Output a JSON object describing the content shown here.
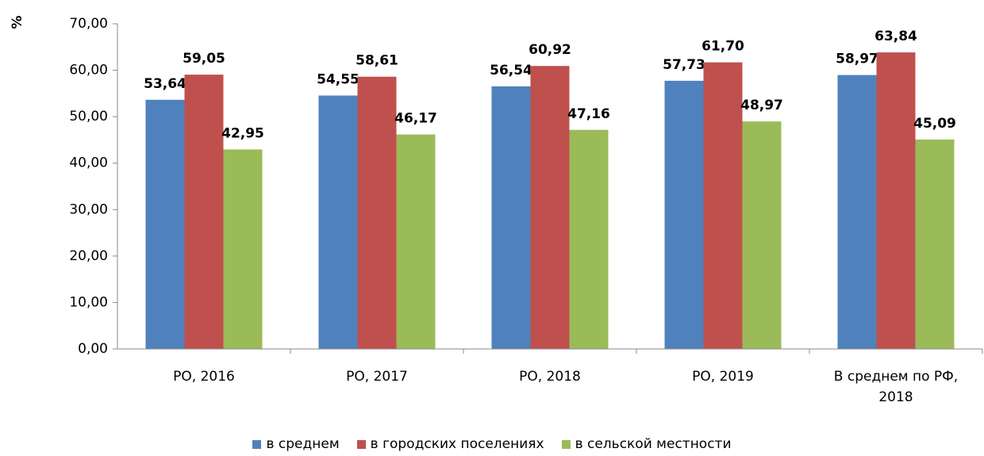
{
  "chart_data": {
    "type": "bar",
    "y_label": "%",
    "categories": [
      "РО, 2016",
      "РО, 2017",
      "РО, 2018",
      "РО, 2019",
      "В среднем по РФ, 2018"
    ],
    "series": [
      {
        "name": "в среднем",
        "color": "#4f81bd",
        "values": [
          53.64,
          54.55,
          56.54,
          57.73,
          58.97
        ],
        "value_labels": [
          "53,64",
          "54,55",
          "56,54",
          "57,73",
          "58,97"
        ]
      },
      {
        "name": "в городских поселениях",
        "color": "#c0504d",
        "values": [
          59.05,
          58.61,
          60.92,
          61.7,
          63.84
        ],
        "value_labels": [
          "59,05",
          "58,61",
          "60,92",
          "61,70",
          "63,84"
        ]
      },
      {
        "name": "в сельской местности",
        "color": "#9bbb59",
        "values": [
          42.95,
          46.17,
          47.16,
          48.97,
          45.09
        ],
        "value_labels": [
          "42,95",
          "46,17",
          "47,16",
          "48,97",
          "45,09"
        ]
      }
    ],
    "ylim": [
      0,
      70
    ],
    "yticks": [
      {
        "value": 0,
        "label": "0,00"
      },
      {
        "value": 10,
        "label": "10,00"
      },
      {
        "value": 20,
        "label": "20,00"
      },
      {
        "value": 30,
        "label": "30,00"
      },
      {
        "value": 40,
        "label": "40,00"
      },
      {
        "value": 50,
        "label": "50,00"
      },
      {
        "value": 60,
        "label": "60,00"
      },
      {
        "value": 70,
        "label": "70,00"
      }
    ],
    "legend": "bottom"
  }
}
